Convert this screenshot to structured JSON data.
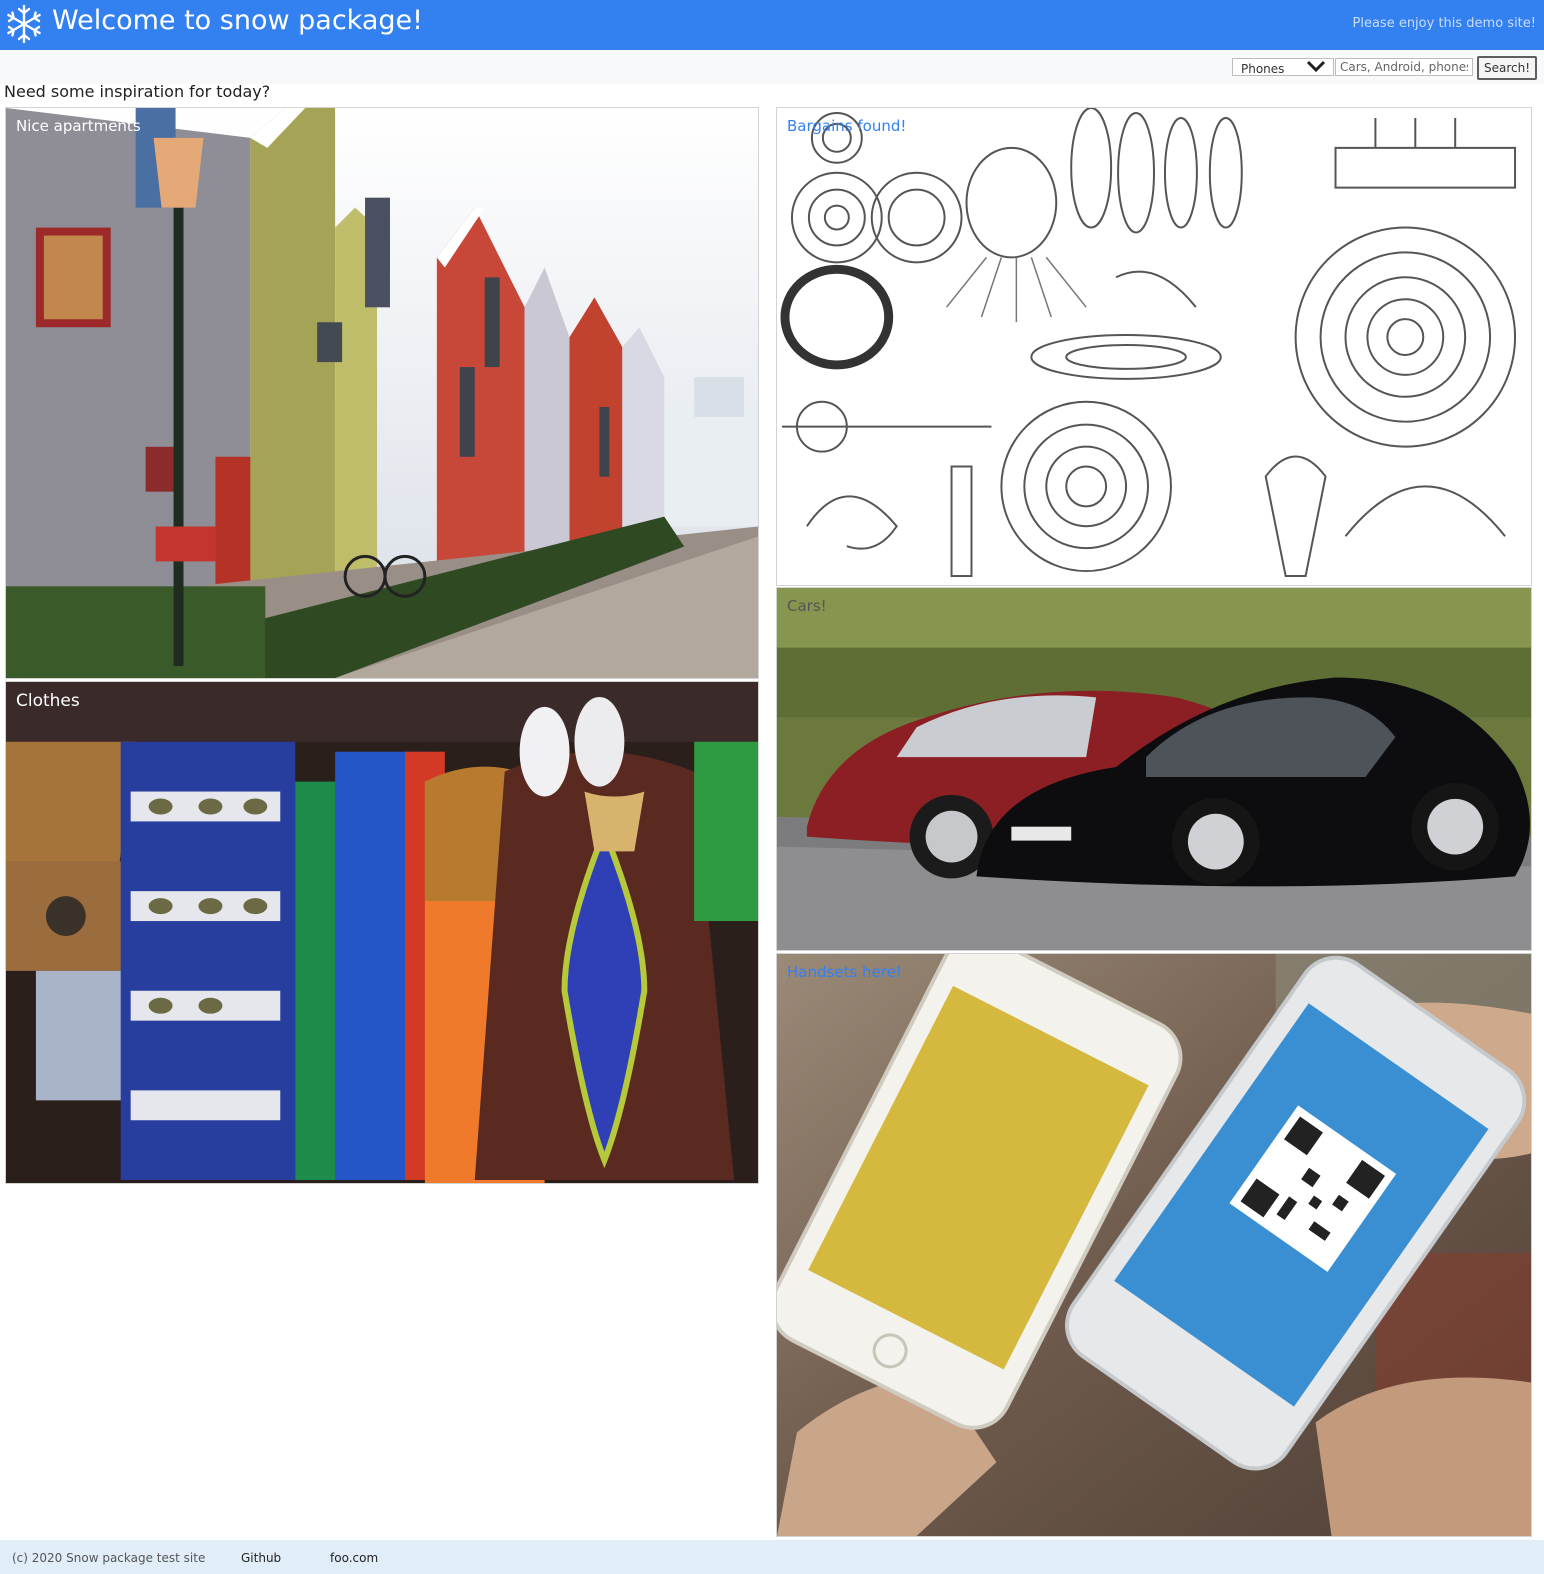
{
  "header": {
    "title": "Welcome to snow package!",
    "subtitle": "Please enjoy this demo site!",
    "logo_icon": "snowflake-icon",
    "background": "#3381f0"
  },
  "toolbar": {
    "category_select": {
      "selected": "Phones",
      "icon": "chevron-down-icon"
    },
    "search": {
      "placeholder": "Cars, Android, phones...",
      "value": ""
    },
    "search_button": "Search!"
  },
  "main": {
    "heading": "Need some inspiration for today?",
    "cards": [
      {
        "label": "Nice apartments",
        "label_color": "#ffffff",
        "image": "apartments-photo"
      },
      {
        "label": "Bargains found!",
        "label_color": "#3381f0",
        "image": "bargains-engraving"
      },
      {
        "label": "Cars!",
        "label_color": "#555555",
        "image": "cars-photo"
      },
      {
        "label": "Clothes",
        "label_color": "#ffffff",
        "image": "clothes-photo"
      },
      {
        "label": "Handsets here!",
        "label_color": "#3381f0",
        "image": "handsets-photo"
      }
    ]
  },
  "footer": {
    "copyright": "(c) 2020 Snow package test site",
    "links": [
      "Github",
      "foo.com"
    ],
    "background": "#e1eefa"
  }
}
